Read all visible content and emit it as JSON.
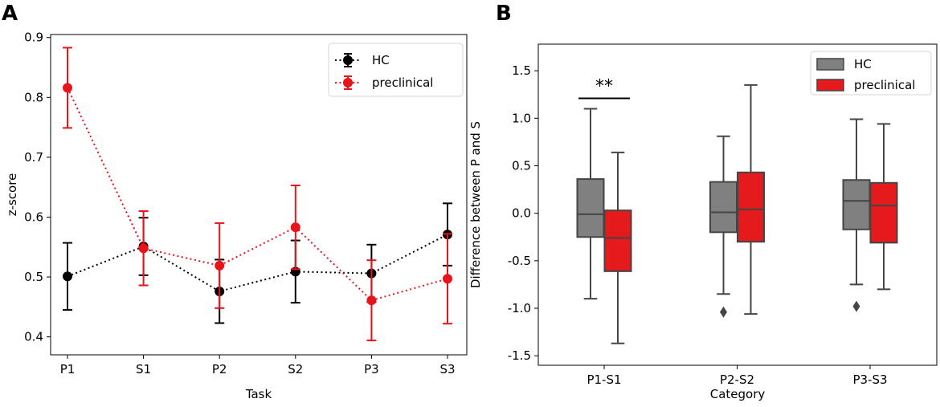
{
  "figure": {
    "colors": {
      "hc_line": "#000000",
      "preclinical_line": "#e8141a",
      "hc_box": "#808080",
      "preclinical_box": "#e41a1c",
      "edge": "#454545"
    }
  },
  "chart_data": [
    {
      "panel": "A",
      "type": "line",
      "title": "",
      "xlabel": "Task",
      "ylabel": "z-score",
      "categories": [
        "P1",
        "S1",
        "P2",
        "S2",
        "P3",
        "S3"
      ],
      "ylim": [
        0.37,
        0.905
      ],
      "yticks": [
        "0.4",
        "0.5",
        "0.6",
        "0.7",
        "0.8",
        "0.9"
      ],
      "legend": {
        "position": "top-right",
        "entries": [
          "HC",
          "preclinical"
        ]
      },
      "series": [
        {
          "name": "HC",
          "color": "#000000",
          "values": [
            0.501,
            0.551,
            0.476,
            0.509,
            0.506,
            0.571
          ],
          "errors": [
            0.056,
            0.048,
            0.053,
            0.052,
            0.048,
            0.052
          ]
        },
        {
          "name": "preclinical",
          "color": "#e8141a",
          "values": [
            0.816,
            0.548,
            0.519,
            0.583,
            0.461,
            0.497
          ],
          "errors": [
            0.067,
            0.062,
            0.071,
            0.07,
            0.067,
            0.075
          ]
        }
      ]
    },
    {
      "panel": "B",
      "type": "box",
      "title": "",
      "xlabel": "Category",
      "ylabel": "Difference between P and S",
      "categories": [
        "P1-S1",
        "P2-S2",
        "P3-S3"
      ],
      "ylim": [
        -1.6,
        1.78
      ],
      "yticks": [
        "-1.5",
        "-1.0",
        "-0.5",
        "0.0",
        "0.5",
        "1.0",
        "1.5"
      ],
      "legend": {
        "position": "top-right",
        "entries": [
          "HC",
          "preclinical"
        ]
      },
      "significance": [
        {
          "category": "P1-S1",
          "label": "**",
          "y": 1.21
        }
      ],
      "series": [
        {
          "name": "HC",
          "color": "#808080",
          "boxes": [
            {
              "whislo": -0.9,
              "q1": -0.25,
              "med": -0.01,
              "q3": 0.36,
              "whishi": 1.1,
              "fliers": []
            },
            {
              "whislo": -0.85,
              "q1": -0.2,
              "med": 0.01,
              "q3": 0.33,
              "whishi": 0.81,
              "fliers": [
                -1.04
              ]
            },
            {
              "whislo": -0.75,
              "q1": -0.17,
              "med": 0.13,
              "q3": 0.35,
              "whishi": 0.99,
              "fliers": [
                -0.98
              ]
            }
          ]
        },
        {
          "name": "preclinical",
          "color": "#e41a1c",
          "boxes": [
            {
              "whislo": -1.37,
              "q1": -0.61,
              "med": -0.26,
              "q3": 0.03,
              "whishi": 0.64,
              "fliers": []
            },
            {
              "whislo": -1.06,
              "q1": -0.3,
              "med": 0.04,
              "q3": 0.43,
              "whishi": 1.35,
              "fliers": []
            },
            {
              "whislo": -0.8,
              "q1": -0.31,
              "med": 0.08,
              "q3": 0.32,
              "whishi": 0.94,
              "fliers": []
            }
          ]
        }
      ]
    }
  ]
}
